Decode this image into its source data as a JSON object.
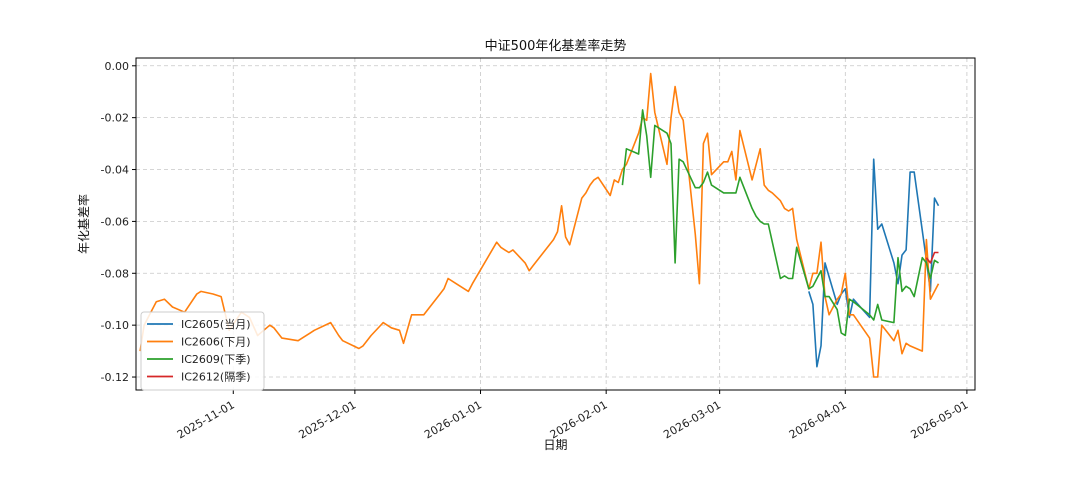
{
  "chart_data": {
    "type": "line",
    "title": "中证500年化基差率走势",
    "xlabel": "日期",
    "ylabel": "年化基差率",
    "x_range": [
      "2025-10-08",
      "2026-05-03"
    ],
    "ylim": [
      -0.125,
      0.003
    ],
    "y_ticks": [
      0.0,
      -0.02,
      -0.04,
      -0.06,
      -0.08,
      -0.1,
      -0.12
    ],
    "x_ticks": [
      "2025-11-01",
      "2025-12-01",
      "2026-01-01",
      "2026-02-01",
      "2026-03-01",
      "2026-04-01",
      "2026-05-01"
    ],
    "grid": true,
    "legend_position": "lower-left",
    "series": [
      {
        "name": "IC2605(当月)",
        "color": "#1f77b4",
        "points": [
          [
            "2026-03-23",
            -0.087
          ],
          [
            "2026-03-24",
            -0.092
          ],
          [
            "2026-03-25",
            -0.116
          ],
          [
            "2026-03-26",
            -0.108
          ],
          [
            "2026-03-27",
            -0.076
          ],
          [
            "2026-03-30",
            -0.092
          ],
          [
            "2026-03-31",
            -0.088
          ],
          [
            "2026-04-01",
            -0.086
          ],
          [
            "2026-04-02",
            -0.097
          ],
          [
            "2026-04-03",
            -0.09
          ],
          [
            "2026-04-07",
            -0.097
          ],
          [
            "2026-04-08",
            -0.036
          ],
          [
            "2026-04-09",
            -0.063
          ],
          [
            "2026-04-10",
            -0.061
          ],
          [
            "2026-04-13",
            -0.076
          ],
          [
            "2026-04-14",
            -0.084
          ],
          [
            "2026-04-15",
            -0.073
          ],
          [
            "2026-04-16",
            -0.071
          ],
          [
            "2026-04-17",
            -0.041
          ],
          [
            "2026-04-18",
            -0.041
          ],
          [
            "2026-04-21",
            -0.075
          ],
          [
            "2026-04-22",
            -0.087
          ],
          [
            "2026-04-23",
            -0.051
          ],
          [
            "2026-04-24",
            -0.054
          ]
        ]
      },
      {
        "name": "IC2606(下月)",
        "color": "#ff7f0e",
        "points": [
          [
            "2025-10-09",
            -0.11
          ],
          [
            "2025-10-10",
            -0.1
          ],
          [
            "2025-10-13",
            -0.091
          ],
          [
            "2025-10-15",
            -0.09
          ],
          [
            "2025-10-17",
            -0.093
          ],
          [
            "2025-10-20",
            -0.095
          ],
          [
            "2025-10-23",
            -0.088
          ],
          [
            "2025-10-24",
            -0.087
          ],
          [
            "2025-10-27",
            -0.088
          ],
          [
            "2025-10-29",
            -0.089
          ],
          [
            "2025-10-31",
            -0.102
          ],
          [
            "2025-11-03",
            -0.095
          ],
          [
            "2025-11-05",
            -0.097
          ],
          [
            "2025-11-07",
            -0.104
          ],
          [
            "2025-11-10",
            -0.1
          ],
          [
            "2025-11-11",
            -0.101
          ],
          [
            "2025-11-13",
            -0.105
          ],
          [
            "2025-11-17",
            -0.106
          ],
          [
            "2025-11-18",
            -0.105
          ],
          [
            "2025-11-20",
            -0.103
          ],
          [
            "2025-11-21",
            -0.102
          ],
          [
            "2025-11-25",
            -0.099
          ],
          [
            "2025-11-27",
            -0.104
          ],
          [
            "2025-11-28",
            -0.106
          ],
          [
            "2025-12-02",
            -0.109
          ],
          [
            "2025-12-03",
            -0.108
          ],
          [
            "2025-12-05",
            -0.104
          ],
          [
            "2025-12-08",
            -0.099
          ],
          [
            "2025-12-10",
            -0.101
          ],
          [
            "2025-12-12",
            -0.102
          ],
          [
            "2025-12-13",
            -0.107
          ],
          [
            "2025-12-15",
            -0.096
          ],
          [
            "2025-12-17",
            -0.096
          ],
          [
            "2025-12-18",
            -0.096
          ],
          [
            "2025-12-19",
            -0.094
          ],
          [
            "2025-12-22",
            -0.088
          ],
          [
            "2025-12-23",
            -0.086
          ],
          [
            "2025-12-24",
            -0.082
          ],
          [
            "2025-12-26",
            -0.084
          ],
          [
            "2025-12-29",
            -0.087
          ],
          [
            "2025-12-30",
            -0.084
          ],
          [
            "2026-01-05",
            -0.068
          ],
          [
            "2026-01-06",
            -0.07
          ],
          [
            "2026-01-07",
            -0.071
          ],
          [
            "2026-01-08",
            -0.072
          ],
          [
            "2026-01-09",
            -0.071
          ],
          [
            "2026-01-12",
            -0.076
          ],
          [
            "2026-01-13",
            -0.079
          ],
          [
            "2026-01-14",
            -0.077
          ],
          [
            "2026-01-19",
            -0.067
          ],
          [
            "2026-01-20",
            -0.064
          ],
          [
            "2026-01-21",
            -0.054
          ],
          [
            "2026-01-22",
            -0.066
          ],
          [
            "2026-01-23",
            -0.069
          ],
          [
            "2026-01-26",
            -0.051
          ],
          [
            "2026-01-27",
            -0.049
          ],
          [
            "2026-01-28",
            -0.046
          ],
          [
            "2026-01-29",
            -0.044
          ],
          [
            "2026-01-30",
            -0.043
          ],
          [
            "2026-02-02",
            -0.05
          ],
          [
            "2026-02-03",
            -0.044
          ],
          [
            "2026-02-04",
            -0.045
          ],
          [
            "2026-02-05",
            -0.04
          ],
          [
            "2026-02-06",
            -0.038
          ],
          [
            "2026-02-09",
            -0.026
          ],
          [
            "2026-02-10",
            -0.02
          ],
          [
            "2026-02-11",
            -0.021
          ],
          [
            "2026-02-12",
            -0.003
          ],
          [
            "2026-02-13",
            -0.018
          ],
          [
            "2026-02-16",
            -0.038
          ],
          [
            "2026-02-17",
            -0.02
          ],
          [
            "2026-02-18",
            -0.008
          ],
          [
            "2026-02-19",
            -0.018
          ],
          [
            "2026-02-20",
            -0.021
          ],
          [
            "2026-02-23",
            -0.065
          ],
          [
            "2026-02-24",
            -0.084
          ],
          [
            "2026-02-25",
            -0.03
          ],
          [
            "2026-02-26",
            -0.026
          ],
          [
            "2026-02-27",
            -0.042
          ],
          [
            "2026-03-02",
            -0.037
          ],
          [
            "2026-03-03",
            -0.037
          ],
          [
            "2026-03-04",
            -0.033
          ],
          [
            "2026-03-05",
            -0.044
          ],
          [
            "2026-03-06",
            -0.025
          ],
          [
            "2026-03-09",
            -0.044
          ],
          [
            "2026-03-11",
            -0.032
          ],
          [
            "2026-03-12",
            -0.046
          ],
          [
            "2026-03-13",
            -0.048
          ],
          [
            "2026-03-14",
            -0.049
          ],
          [
            "2026-03-16",
            -0.052
          ],
          [
            "2026-03-17",
            -0.055
          ],
          [
            "2026-03-18",
            -0.056
          ],
          [
            "2026-03-19",
            -0.055
          ],
          [
            "2026-03-20",
            -0.067
          ],
          [
            "2026-03-23",
            -0.086
          ],
          [
            "2026-03-24",
            -0.08
          ],
          [
            "2026-03-25",
            -0.08
          ],
          [
            "2026-03-26",
            -0.068
          ],
          [
            "2026-03-27",
            -0.089
          ],
          [
            "2026-03-28",
            -0.096
          ],
          [
            "2026-03-30",
            -0.09
          ],
          [
            "2026-03-31",
            -0.088
          ],
          [
            "2026-04-01",
            -0.08
          ],
          [
            "2026-04-02",
            -0.096
          ],
          [
            "2026-04-03",
            -0.096
          ],
          [
            "2026-04-07",
            -0.105
          ],
          [
            "2026-04-08",
            -0.12
          ],
          [
            "2026-04-09",
            -0.12
          ],
          [
            "2026-04-10",
            -0.1
          ],
          [
            "2026-04-13",
            -0.106
          ],
          [
            "2026-04-14",
            -0.102
          ],
          [
            "2026-04-15",
            -0.111
          ],
          [
            "2026-04-16",
            -0.107
          ],
          [
            "2026-04-17",
            -0.108
          ],
          [
            "2026-04-20",
            -0.11
          ],
          [
            "2026-04-21",
            -0.067
          ],
          [
            "2026-04-22",
            -0.09
          ],
          [
            "2026-04-23",
            -0.087
          ],
          [
            "2026-04-24",
            -0.084
          ]
        ]
      },
      {
        "name": "IC2609(下季)",
        "color": "#2ca02c",
        "points": [
          [
            "2026-02-05",
            -0.046
          ],
          [
            "2026-02-06",
            -0.032
          ],
          [
            "2026-02-09",
            -0.034
          ],
          [
            "2026-02-10",
            -0.017
          ],
          [
            "2026-02-11",
            -0.027
          ],
          [
            "2026-02-12",
            -0.043
          ],
          [
            "2026-02-13",
            -0.023
          ],
          [
            "2026-02-16",
            -0.026
          ],
          [
            "2026-02-17",
            -0.03
          ],
          [
            "2026-02-18",
            -0.076
          ],
          [
            "2026-02-19",
            -0.036
          ],
          [
            "2026-02-20",
            -0.037
          ],
          [
            "2026-02-23",
            -0.047
          ],
          [
            "2026-02-24",
            -0.047
          ],
          [
            "2026-02-25",
            -0.045
          ],
          [
            "2026-02-26",
            -0.041
          ],
          [
            "2026-02-27",
            -0.046
          ],
          [
            "2026-03-02",
            -0.049
          ],
          [
            "2026-03-03",
            -0.049
          ],
          [
            "2026-03-05",
            -0.049
          ],
          [
            "2026-03-06",
            -0.043
          ],
          [
            "2026-03-09",
            -0.055
          ],
          [
            "2026-03-10",
            -0.058
          ],
          [
            "2026-03-11",
            -0.06
          ],
          [
            "2026-03-12",
            -0.061
          ],
          [
            "2026-03-13",
            -0.061
          ],
          [
            "2026-03-16",
            -0.082
          ],
          [
            "2026-03-17",
            -0.081
          ],
          [
            "2026-03-18",
            -0.082
          ],
          [
            "2026-03-19",
            -0.082
          ],
          [
            "2026-03-20",
            -0.07
          ],
          [
            "2026-03-23",
            -0.086
          ],
          [
            "2026-03-24",
            -0.085
          ],
          [
            "2026-03-25",
            -0.082
          ],
          [
            "2026-03-26",
            -0.079
          ],
          [
            "2026-03-27",
            -0.089
          ],
          [
            "2026-03-28",
            -0.089
          ],
          [
            "2026-03-30",
            -0.094
          ],
          [
            "2026-03-31",
            -0.103
          ],
          [
            "2026-04-01",
            -0.104
          ],
          [
            "2026-04-02",
            -0.09
          ],
          [
            "2026-04-03",
            -0.091
          ],
          [
            "2026-04-07",
            -0.096
          ],
          [
            "2026-04-08",
            -0.098
          ],
          [
            "2026-04-09",
            -0.092
          ],
          [
            "2026-04-10",
            -0.098
          ],
          [
            "2026-04-13",
            -0.099
          ],
          [
            "2026-04-14",
            -0.074
          ],
          [
            "2026-04-15",
            -0.087
          ],
          [
            "2026-04-16",
            -0.085
          ],
          [
            "2026-04-17",
            -0.086
          ],
          [
            "2026-04-18",
            -0.089
          ],
          [
            "2026-04-20",
            -0.074
          ],
          [
            "2026-04-21",
            -0.076
          ],
          [
            "2026-04-22",
            -0.082
          ],
          [
            "2026-04-23",
            -0.075
          ],
          [
            "2026-04-24",
            -0.076
          ]
        ]
      },
      {
        "name": "IC2612(隔季)",
        "color": "#d62728",
        "points": [
          [
            "2026-04-21",
            -0.074
          ],
          [
            "2026-04-22",
            -0.076
          ],
          [
            "2026-04-23",
            -0.072
          ],
          [
            "2026-04-24",
            -0.072
          ]
        ]
      }
    ]
  }
}
